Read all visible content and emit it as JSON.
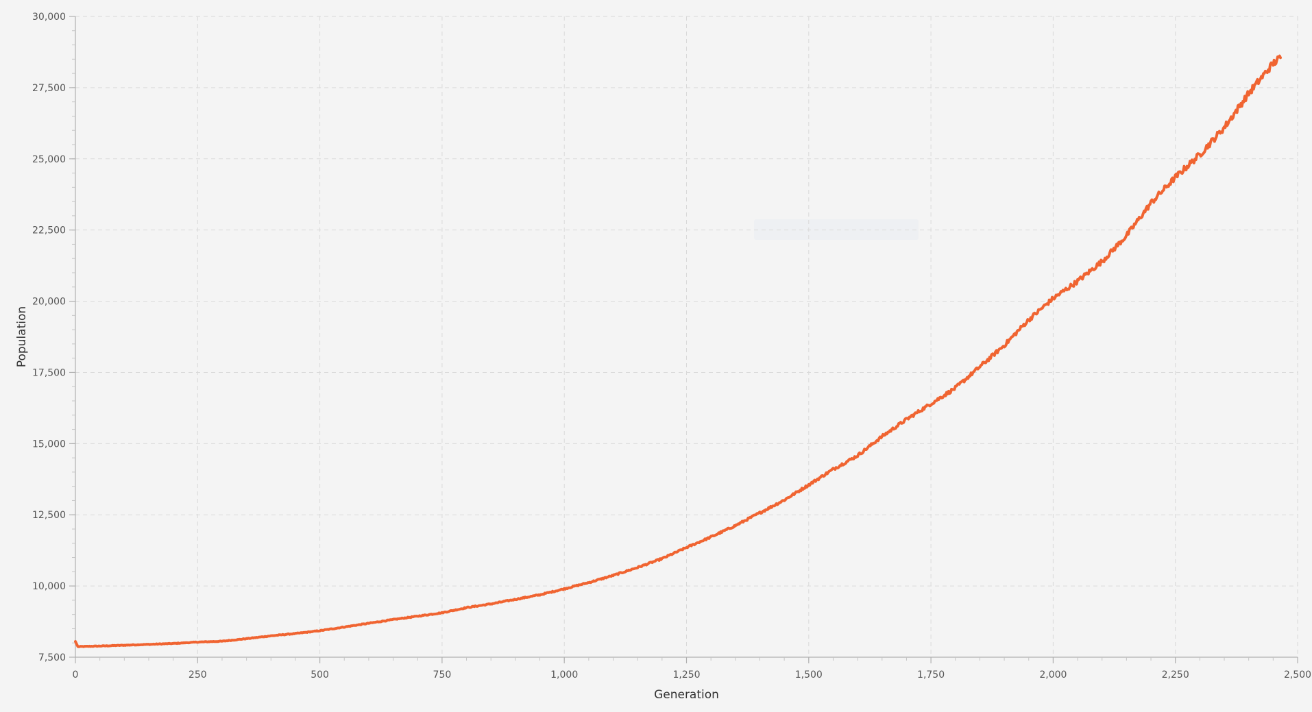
{
  "chart_data": {
    "type": "line",
    "xlabel": "Generation",
    "ylabel": "Population",
    "xlim": [
      0,
      2500
    ],
    "ylim": [
      7500,
      30000
    ],
    "x_ticks": [
      0,
      250,
      500,
      750,
      1000,
      1250,
      1500,
      1750,
      2000,
      2250,
      2500
    ],
    "x_tick_labels": [
      "0",
      "250",
      "500",
      "750",
      "1,000",
      "1,250",
      "1,500",
      "1,750",
      "2,000",
      "2,250",
      "2,500"
    ],
    "y_ticks": [
      7500,
      10000,
      12500,
      15000,
      17500,
      20000,
      22500,
      25000,
      27500,
      30000
    ],
    "y_tick_labels": [
      "7,500",
      "10,000",
      "12,500",
      "15,000",
      "17,500",
      "20,000",
      "22,500",
      "25,000",
      "27,500",
      "30,000"
    ],
    "grid": true,
    "series": [
      {
        "color": "#f06431",
        "x": [
          0,
          5,
          25,
          50,
          100,
          150,
          200,
          250,
          300,
          350,
          400,
          450,
          500,
          550,
          600,
          650,
          700,
          750,
          800,
          850,
          900,
          950,
          1000,
          1050,
          1100,
          1150,
          1200,
          1250,
          1300,
          1350,
          1400,
          1450,
          1500,
          1550,
          1600,
          1650,
          1700,
          1750,
          1800,
          1850,
          1900,
          1950,
          2000,
          2050,
          2100,
          2150,
          2200,
          2250,
          2300,
          2350,
          2400,
          2450,
          2465
        ],
        "y": [
          8050,
          7870,
          7880,
          7890,
          7920,
          7950,
          7980,
          8030,
          8060,
          8150,
          8250,
          8330,
          8430,
          8560,
          8690,
          8820,
          8940,
          9060,
          9240,
          9370,
          9530,
          9690,
          9900,
          10120,
          10370,
          10650,
          10960,
          11350,
          11720,
          12120,
          12570,
          13020,
          13550,
          14100,
          14580,
          15250,
          15850,
          16400,
          16950,
          17700,
          18450,
          19350,
          20100,
          20700,
          21400,
          22300,
          23450,
          24350,
          25150,
          26100,
          27300,
          28350,
          28550
        ]
      }
    ]
  }
}
